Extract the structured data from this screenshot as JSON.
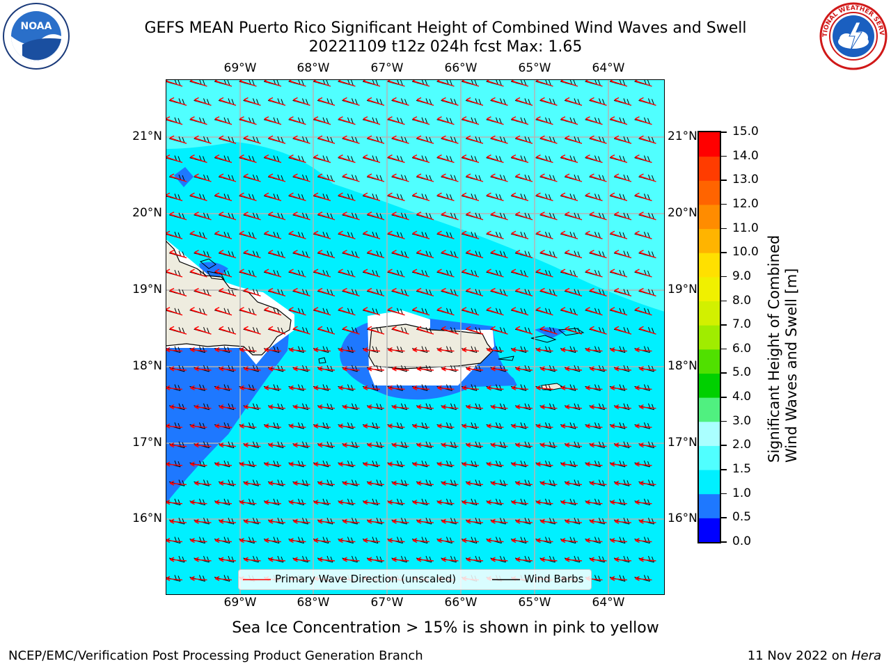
{
  "header": {
    "title_line1": "GEFS MEAN Puerto Rico Significant Height of Combined Wind Waves and Swell",
    "title_line2": "20221109 t12z 024h fcst   Max: 1.65"
  },
  "logos": {
    "left_logo_text": "NOAA",
    "right_logo_text": "NATIONAL WEATHER SERVICE"
  },
  "map": {
    "lon_labels": [
      "69°W",
      "68°W",
      "67°W",
      "66°W",
      "65°W",
      "64°W"
    ],
    "lat_labels": [
      "21°N",
      "20°N",
      "19°N",
      "18°N",
      "17°N",
      "16°N"
    ],
    "legend": {
      "wave_direction": "Primary Wave Direction (unscaled)",
      "wind_barbs": "Wind Barbs"
    }
  },
  "colorbar": {
    "label_line1": "Significant Height of Combined",
    "label_line2": "Wind Waves and Swell [m]",
    "ticks": [
      "0.0",
      "0.5",
      "1.0",
      "1.5",
      "2.0",
      "3.0",
      "4.0",
      "5.0",
      "6.0",
      "7.0",
      "8.0",
      "9.0",
      "10.0",
      "11.0",
      "12.0",
      "13.0",
      "14.0",
      "15.0"
    ],
    "colors": [
      "#0000ff",
      "#1e78ff",
      "#00f0ff",
      "#50ffff",
      "#aaffff",
      "#50f080",
      "#00d000",
      "#50e000",
      "#a0ec00",
      "#d2f000",
      "#f0f000",
      "#ffe000",
      "#ffb400",
      "#ff8c00",
      "#ff6400",
      "#ff3c00",
      "#ff0000"
    ]
  },
  "footer": {
    "sea_ice_note": "Sea Ice Concentration > 15% is shown in pink to yellow",
    "branch": "NCEP/EMC/Verification Post Processing Product Generation Branch",
    "date": "11 Nov 2022 on ",
    "machine": "Hera"
  }
}
